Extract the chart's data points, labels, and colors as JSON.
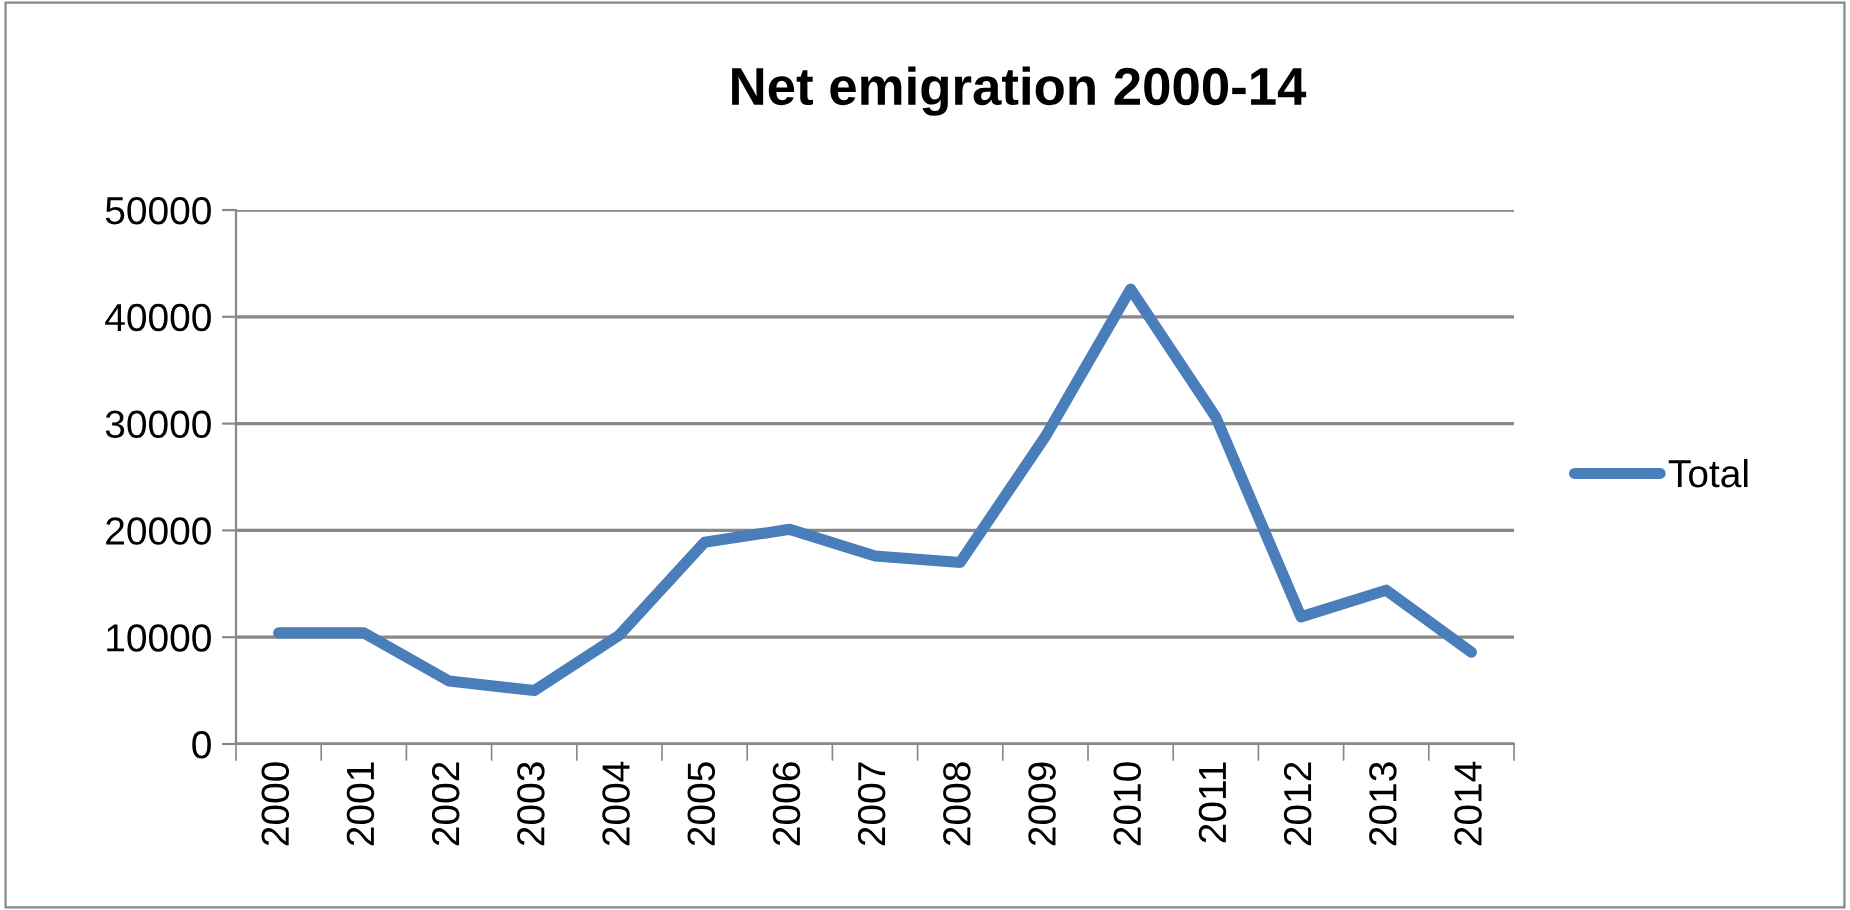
{
  "chart_data": {
    "type": "line",
    "title": "Net emigration 2000-14",
    "categories": [
      "2000",
      "2001",
      "2002",
      "2003",
      "2004",
      "2005",
      "2006",
      "2007",
      "2008",
      "2009",
      "2010",
      "2011",
      "2012",
      "2013",
      "2014"
    ],
    "series": [
      {
        "name": "Total",
        "color": "#4a7ebb",
        "values": [
          10400,
          10400,
          5900,
          5000,
          10200,
          18900,
          20100,
          17600,
          17000,
          28800,
          42600,
          30600,
          11900,
          14400,
          8600
        ]
      }
    ],
    "ylim": [
      0,
      50000
    ],
    "yticks": [
      0,
      10000,
      20000,
      30000,
      40000,
      50000
    ],
    "grid": "y",
    "legend": "right",
    "marker": "none",
    "line_style": "solid"
  }
}
